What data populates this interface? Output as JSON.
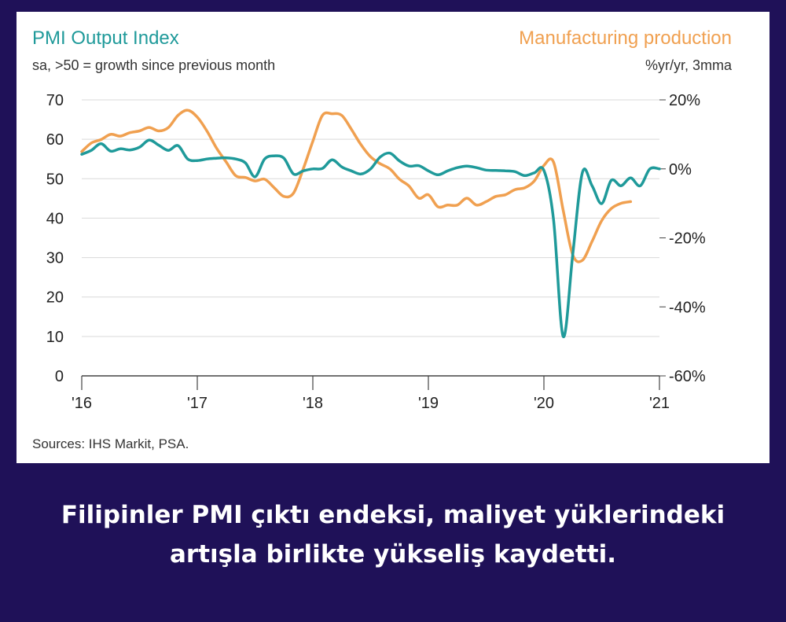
{
  "colors": {
    "background": "#1f1158",
    "pmi": "#1f9a9a",
    "production": "#f0a050",
    "grid": "#d9d9d9"
  },
  "chart_data": {
    "type": "line",
    "title_left": "PMI Output Index",
    "subtitle_left": "sa, >50 = growth since previous month",
    "title_right": "Manufacturing production",
    "subtitle_right": "%yr/yr, 3mma",
    "source": "Sources: IHS Markit, PSA.",
    "x_ticks": [
      "'16",
      "'17",
      "'18",
      "'19",
      "'20",
      "'21"
    ],
    "xlim": [
      2016,
      2021
    ],
    "y_left": {
      "ticks": [
        "70",
        "60",
        "50",
        "40",
        "30",
        "20",
        "10",
        "0"
      ],
      "ylim": [
        0,
        70
      ]
    },
    "y_right": {
      "ticks": [
        "20%",
        "0%",
        "-20%",
        "-40%",
        "-60%"
      ],
      "ylim": [
        -60,
        20
      ]
    },
    "grid": true,
    "series": [
      {
        "name": "PMI Output Index",
        "axis": "left",
        "x": [
          2016.0,
          2016.083,
          2016.167,
          2016.25,
          2016.333,
          2016.417,
          2016.5,
          2016.583,
          2016.667,
          2016.75,
          2016.833,
          2016.917,
          2017.0,
          2017.083,
          2017.167,
          2017.25,
          2017.333,
          2017.417,
          2017.5,
          2017.583,
          2017.667,
          2017.75,
          2017.833,
          2017.917,
          2018.0,
          2018.083,
          2018.167,
          2018.25,
          2018.333,
          2018.417,
          2018.5,
          2018.583,
          2018.667,
          2018.75,
          2018.833,
          2018.917,
          2019.0,
          2019.083,
          2019.167,
          2019.25,
          2019.333,
          2019.417,
          2019.5,
          2019.583,
          2019.667,
          2019.75,
          2019.833,
          2019.917,
          2020.0,
          2020.083,
          2020.167,
          2020.25,
          2020.333,
          2020.417,
          2020.5,
          2020.583,
          2020.667,
          2020.75,
          2020.833,
          2020.917,
          2021.0
        ],
        "values": [
          56.2,
          57.2,
          58.9,
          57.0,
          57.6,
          57.3,
          58.0,
          59.8,
          58.5,
          57.2,
          58.4,
          55.0,
          54.6,
          55.0,
          55.2,
          55.3,
          55.0,
          54.0,
          50.5,
          55.0,
          55.8,
          55.2,
          51.2,
          52.0,
          52.5,
          52.6,
          54.8,
          53.0,
          52.0,
          51.2,
          52.5,
          55.5,
          56.5,
          54.5,
          53.2,
          53.3,
          52.0,
          51.0,
          52.0,
          52.8,
          53.2,
          52.8,
          52.2,
          52.1,
          52.0,
          51.8,
          50.8,
          51.5,
          52.1,
          39.7,
          10.0,
          31.0,
          51.6,
          48.2,
          43.7,
          49.6,
          48.2,
          50.2,
          48.2,
          52.5,
          52.5
        ]
      },
      {
        "name": "Manufacturing production",
        "axis": "right",
        "x": [
          2016.0,
          2016.083,
          2016.167,
          2016.25,
          2016.333,
          2016.417,
          2016.5,
          2016.583,
          2016.667,
          2016.75,
          2016.833,
          2016.917,
          2017.0,
          2017.083,
          2017.167,
          2017.25,
          2017.333,
          2017.417,
          2017.5,
          2017.583,
          2017.667,
          2017.75,
          2017.833,
          2017.917,
          2018.0,
          2018.083,
          2018.167,
          2018.25,
          2018.333,
          2018.417,
          2018.5,
          2018.583,
          2018.667,
          2018.75,
          2018.833,
          2018.917,
          2019.0,
          2019.083,
          2019.167,
          2019.25,
          2019.333,
          2019.417,
          2019.5,
          2019.583,
          2019.667,
          2019.75,
          2019.833,
          2019.917,
          2020.0,
          2020.083,
          2020.167,
          2020.25,
          2020.333,
          2020.417,
          2020.5,
          2020.583,
          2020.667,
          2020.75
        ],
        "values": [
          5.0,
          7.5,
          8.5,
          10.0,
          9.5,
          10.5,
          11.0,
          12.0,
          11.0,
          12.0,
          15.5,
          17.0,
          15.0,
          11.0,
          6.0,
          2.0,
          -2.0,
          -2.5,
          -3.5,
          -3.0,
          -5.5,
          -8.0,
          -7.0,
          0.0,
          8.0,
          15.5,
          16.0,
          15.5,
          11.5,
          7.0,
          3.5,
          1.5,
          0.0,
          -3.0,
          -5.0,
          -8.5,
          -7.5,
          -11.0,
          -10.5,
          -10.5,
          -8.5,
          -10.5,
          -9.5,
          -8.0,
          -7.5,
          -6.0,
          -5.5,
          -3.5,
          1.0,
          2.0,
          -12.0,
          -25.0,
          -26.5,
          -21.0,
          -15.0,
          -11.5,
          -10.0,
          -9.5
        ]
      }
    ]
  },
  "caption": {
    "line1": "Filipinler PMI çıktı endeksi, maliyet yüklerindeki",
    "line2": "artışla birlikte yükseliş kaydetti."
  }
}
